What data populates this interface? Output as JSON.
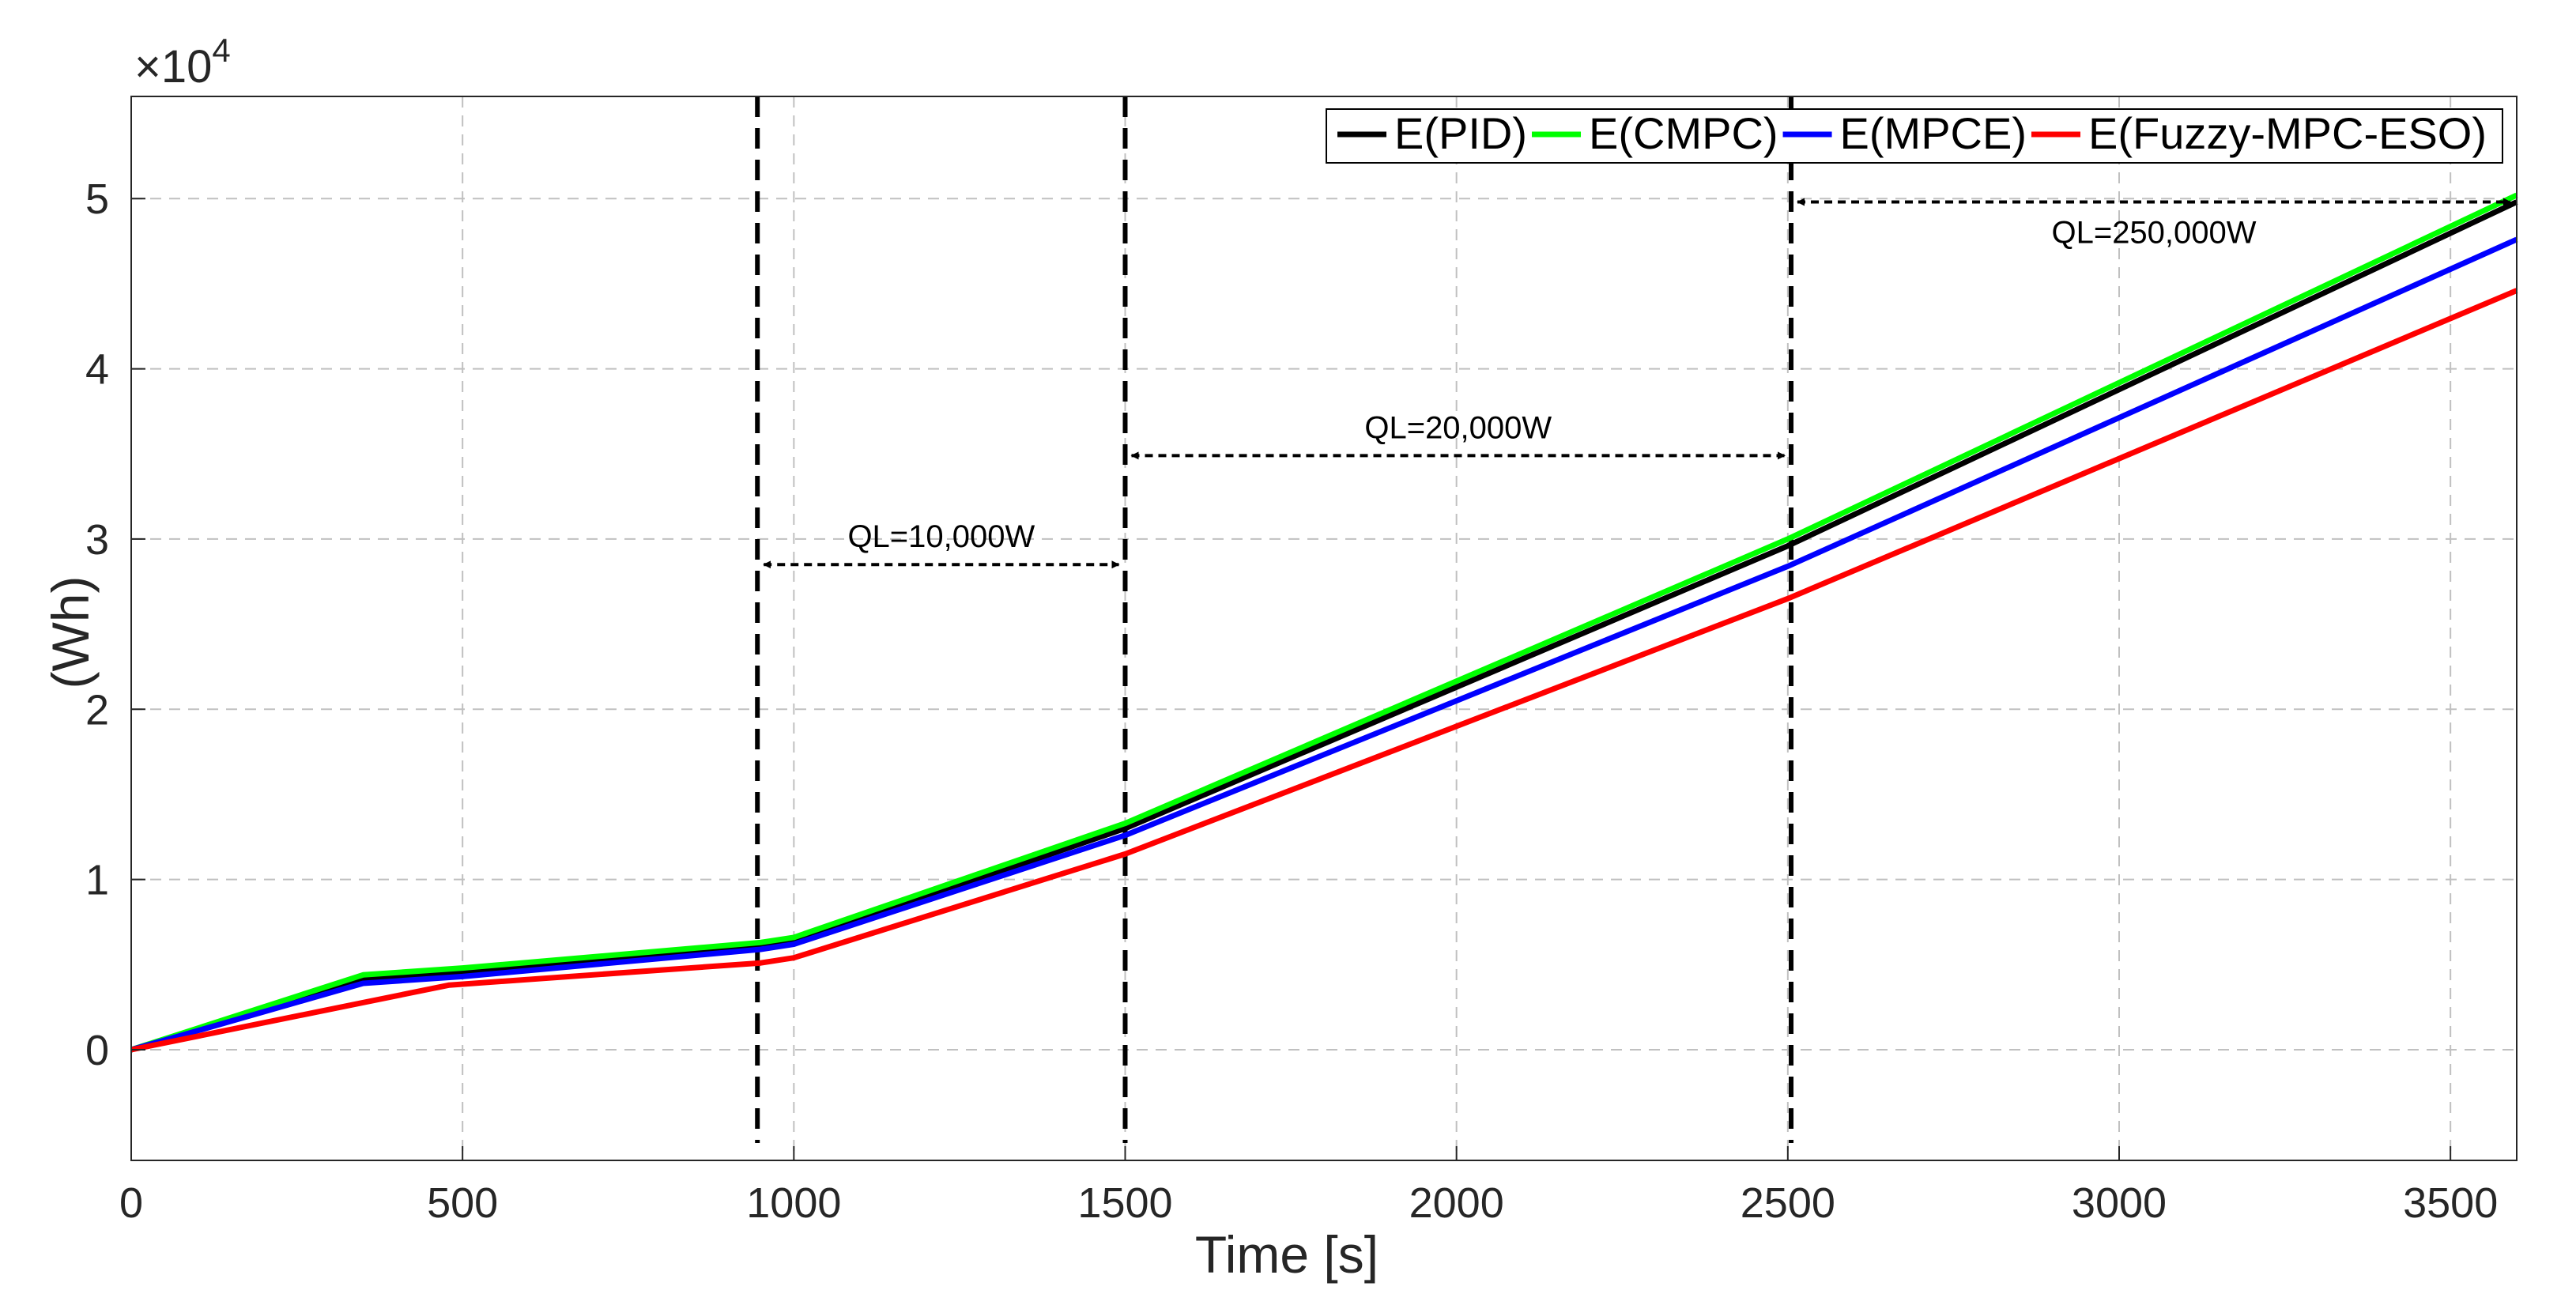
{
  "chart_data": {
    "type": "line",
    "title": "",
    "xlabel": "Time [s]",
    "ylabel": "(Wh)",
    "y_exponent_label": "×10",
    "y_exponent_power": "4",
    "xlim": [
      0,
      3600
    ],
    "ylim": [
      -0.65,
      5.6
    ],
    "y_scale_factor": 10000,
    "xticks": [
      0,
      500,
      1000,
      1500,
      2000,
      2500,
      3000,
      3500
    ],
    "xtick_labels": [
      "0",
      "500",
      "1000",
      "1500",
      "2000",
      "2500",
      "3000",
      "3500"
    ],
    "yticks": [
      0,
      1,
      2,
      3,
      4,
      5
    ],
    "ytick_labels": [
      "0",
      "1",
      "2",
      "3",
      "4",
      "5"
    ],
    "grid": true,
    "legend_position": "top-right",
    "series": [
      {
        "name": "E(PID)",
        "color": "#000000",
        "x": [
          0,
          350,
          500,
          950,
          1000,
          1500,
          2500,
          3600
        ],
        "y": [
          0,
          0.41,
          0.45,
          0.6,
          0.63,
          1.3,
          2.96,
          4.98
        ]
      },
      {
        "name": "E(CMPC)",
        "color": "#00ff00",
        "x": [
          0,
          350,
          500,
          950,
          1000,
          1500,
          2500,
          3600
        ],
        "y": [
          0,
          0.44,
          0.48,
          0.63,
          0.66,
          1.33,
          3.0,
          5.02
        ]
      },
      {
        "name": "E(MPCE)",
        "color": "#0000ff",
        "x": [
          0,
          350,
          500,
          950,
          1000,
          1500,
          2500,
          3600
        ],
        "y": [
          0,
          0.39,
          0.43,
          0.59,
          0.62,
          1.26,
          2.84,
          4.76
        ]
      },
      {
        "name": "E(Fuzzy-MPC-ESO)",
        "color": "#ff0000",
        "x": [
          0,
          480,
          950,
          1000,
          1500,
          2500,
          3600
        ],
        "y": [
          0,
          0.38,
          0.51,
          0.54,
          1.15,
          2.65,
          4.46
        ]
      }
    ],
    "vertical_lines": [
      945,
      1500,
      2505
    ],
    "annotations": [
      {
        "text": "QL=10,000W",
        "x1": 945,
        "x2": 1500,
        "y": 2.85
      },
      {
        "text": "QL=20,000W",
        "x1": 1500,
        "x2": 2505,
        "y": 3.49
      },
      {
        "text": "QL=250,000W",
        "x1": 2505,
        "x2": 3600,
        "y": 4.98
      }
    ]
  }
}
